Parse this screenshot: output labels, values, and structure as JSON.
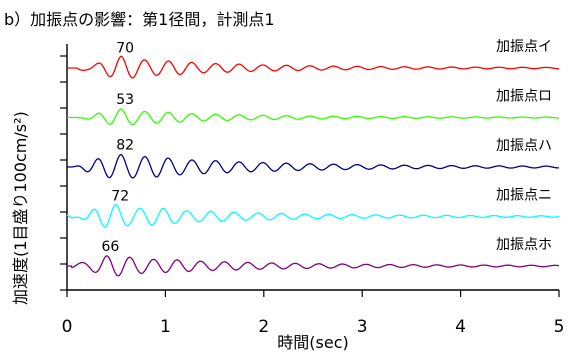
{
  "chart_data": {
    "type": "line",
    "title": "b）加振点の影響：第1径間，計測点1",
    "xlabel": "時間(sec)",
    "ylabel": "加速度(1目盛り100cm/s²)",
    "xlim": [
      0,
      5
    ],
    "xticks": [
      "0",
      "1",
      "2",
      "3",
      "4",
      "5"
    ],
    "series": [
      {
        "name": "加振点イ",
        "color": "#ff0000",
        "peak": "70",
        "peak_value": 70,
        "period": 0.24,
        "start": 0.1,
        "peak_time": 0.55,
        "decay": 1.1,
        "ripple": 0.2
      },
      {
        "name": "加振点ロ",
        "color": "#33ff00",
        "peak": "53",
        "peak_value": 53,
        "period": 0.24,
        "start": 0.12,
        "peak_time": 0.55,
        "decay": 1.2,
        "ripple": 0.15
      },
      {
        "name": "加振点ハ",
        "color": "#000080",
        "peak": "82",
        "peak_value": 82,
        "period": 0.24,
        "start": 0.05,
        "peak_time": 0.55,
        "decay": 0.9,
        "ripple": 0.15
      },
      {
        "name": "加振点ニ",
        "color": "#00ffff",
        "peak": "72",
        "peak_value": 72,
        "period": 0.24,
        "start": 0.0,
        "peak_time": 0.5,
        "decay": 1.0,
        "ripple": 0.3
      },
      {
        "name": "加振点ホ",
        "color": "#800080",
        "peak": "66",
        "peak_value": 66,
        "period": 0.24,
        "start": 0.05,
        "peak_time": 0.4,
        "decay": 0.9,
        "ripple": 0.15
      }
    ]
  }
}
